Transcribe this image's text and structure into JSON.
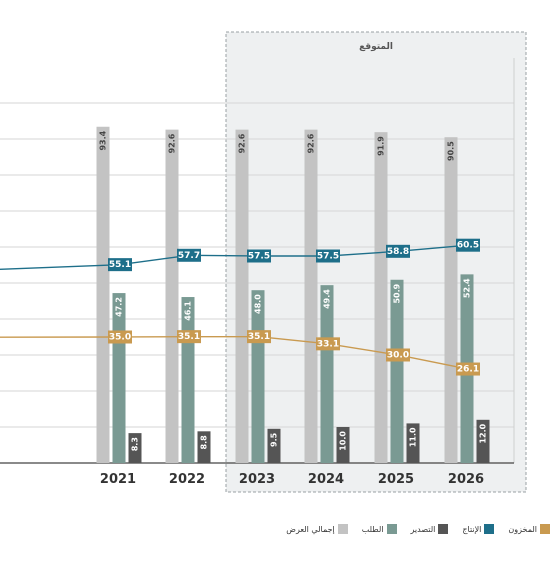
{
  "chart_data": {
    "type": "bar",
    "categories": [
      "2021",
      "2022",
      "2023",
      "2024",
      "2025",
      "2026"
    ],
    "series": [
      {
        "name": "إجمالي العرض",
        "kind": "bar",
        "color": "#c3c3c3",
        "values": [
          93.4,
          92.6,
          92.6,
          92.6,
          91.9,
          90.5
        ]
      },
      {
        "name": "الطلب",
        "kind": "bar",
        "color": "#7a9a93",
        "values": [
          47.2,
          46.1,
          48.0,
          49.4,
          50.9,
          52.4
        ]
      },
      {
        "name": "التصدير",
        "kind": "bar",
        "color": "#555555",
        "values": [
          8.3,
          8.8,
          9.5,
          10.0,
          11.0,
          12.0
        ]
      },
      {
        "name": "الإنتاج",
        "kind": "line",
        "color": "#1e6f8a",
        "values": [
          55.1,
          57.7,
          57.5,
          57.5,
          58.8,
          60.5
        ]
      },
      {
        "name": "المخزون",
        "kind": "line",
        "color": "#c99a50",
        "values": [
          35.0,
          35.1,
          35.1,
          33.1,
          30.0,
          26.1
        ]
      }
    ],
    "forecast_label": "المتوقع",
    "forecast_from": "2023",
    "ylim": [
      0,
      100
    ],
    "grid": true,
    "legend_position": "bottom-right"
  }
}
